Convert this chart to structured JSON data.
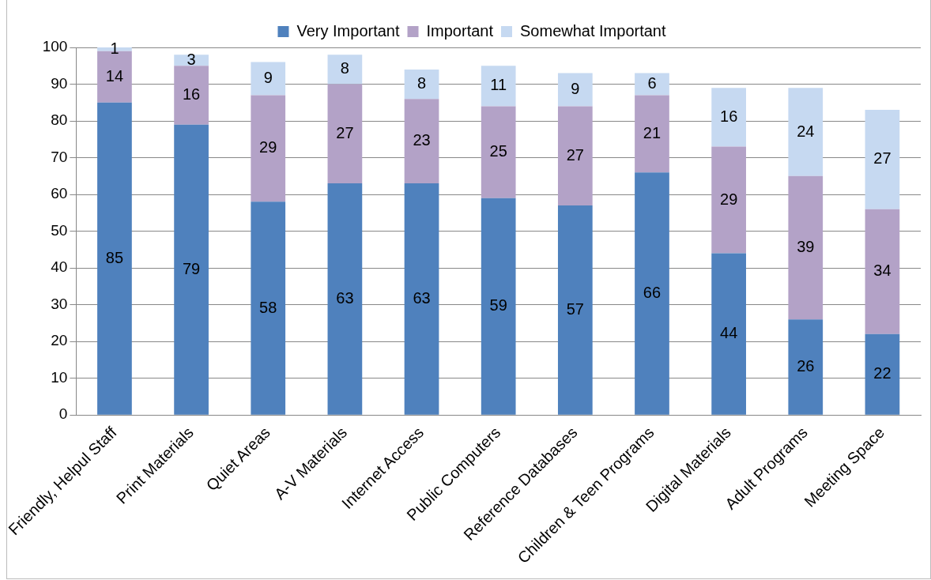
{
  "chart_data": {
    "type": "bar",
    "stacked": true,
    "categories": [
      "Friendly, Helpul Staff",
      "Print Materials",
      "Quiet Areas",
      "A-V Materials",
      "Internet Access",
      "Public Computers",
      "Reference Databases",
      "Children & Teen Programs",
      "Digital Materials",
      "Adult Programs",
      "Meeting Space"
    ],
    "series": [
      {
        "name": "Very Important",
        "color": "#4f81bd",
        "values": [
          85,
          79,
          58,
          63,
          63,
          59,
          57,
          66,
          44,
          26,
          22
        ]
      },
      {
        "name": "Important",
        "color": "#b3a2c7",
        "values": [
          14,
          16,
          29,
          27,
          23,
          25,
          27,
          21,
          29,
          39,
          34
        ]
      },
      {
        "name": "Somewhat Important",
        "color": "#c6d9f1",
        "values": [
          1,
          3,
          9,
          8,
          8,
          11,
          9,
          6,
          16,
          24,
          27
        ]
      }
    ],
    "ylim": [
      0,
      100
    ],
    "yticks": [
      0,
      10,
      20,
      30,
      40,
      50,
      60,
      70,
      80,
      90,
      100
    ],
    "grid": "y",
    "legend": "top",
    "data_labels": true
  }
}
